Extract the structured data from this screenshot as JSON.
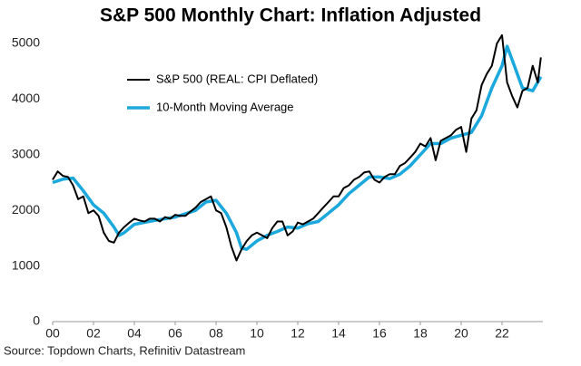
{
  "chart_data": {
    "type": "line",
    "title": "S&P 500 Monthly Chart: Inflation Adjusted",
    "source": "Source: Topdown Charts, Refinitiv Datastream",
    "legend": "upper left",
    "grid": false,
    "xlim": [
      0,
      24
    ],
    "ylim": [
      0,
      5000
    ],
    "yticks": [
      0,
      1000,
      2000,
      3000,
      4000,
      5000
    ],
    "xticks": [
      {
        "value": 0,
        "label": "00"
      },
      {
        "value": 2,
        "label": "02"
      },
      {
        "value": 4,
        "label": "04"
      },
      {
        "value": 6,
        "label": "06"
      },
      {
        "value": 8,
        "label": "08"
      },
      {
        "value": 10,
        "label": "10"
      },
      {
        "value": 12,
        "label": "12"
      },
      {
        "value": 14,
        "label": "14"
      },
      {
        "value": 16,
        "label": "16"
      },
      {
        "value": 18,
        "label": "18"
      },
      {
        "value": 20,
        "label": "20"
      },
      {
        "value": 22,
        "label": "22"
      }
    ],
    "series": [
      {
        "name": "S&P 500 (REAL: CPI Deflated)",
        "color": "#000000",
        "x": [
          0,
          0.25,
          0.5,
          0.75,
          1,
          1.25,
          1.5,
          1.75,
          2,
          2.25,
          2.5,
          2.75,
          3,
          3.25,
          3.5,
          3.75,
          4,
          4.25,
          4.5,
          4.75,
          5,
          5.25,
          5.5,
          5.75,
          6,
          6.25,
          6.5,
          6.75,
          7,
          7.25,
          7.5,
          7.75,
          8,
          8.25,
          8.5,
          8.75,
          9,
          9.25,
          9.5,
          9.75,
          10,
          10.25,
          10.5,
          10.75,
          11,
          11.25,
          11.5,
          11.75,
          12,
          12.25,
          12.5,
          12.75,
          13,
          13.25,
          13.5,
          13.75,
          14,
          14.25,
          14.5,
          14.75,
          15,
          15.25,
          15.5,
          15.75,
          16,
          16.25,
          16.5,
          16.75,
          17,
          17.25,
          17.5,
          17.75,
          18,
          18.25,
          18.5,
          18.75,
          19,
          19.25,
          19.5,
          19.75,
          20,
          20.25,
          20.5,
          20.75,
          21,
          21.25,
          21.5,
          21.75,
          22,
          22.25,
          22.5,
          22.75,
          23,
          23.25,
          23.5,
          23.75,
          23.9
        ],
        "values": [
          2550,
          2700,
          2620,
          2600,
          2450,
          2200,
          2250,
          1950,
          2000,
          1900,
          1600,
          1450,
          1420,
          1600,
          1700,
          1780,
          1850,
          1820,
          1800,
          1850,
          1850,
          1800,
          1880,
          1850,
          1920,
          1900,
          1900,
          1980,
          2050,
          2150,
          2200,
          2250,
          2000,
          1950,
          1700,
          1350,
          1100,
          1300,
          1450,
          1550,
          1600,
          1550,
          1500,
          1680,
          1800,
          1800,
          1550,
          1620,
          1780,
          1750,
          1800,
          1850,
          1950,
          2050,
          2150,
          2250,
          2250,
          2400,
          2450,
          2550,
          2600,
          2680,
          2700,
          2550,
          2500,
          2600,
          2650,
          2650,
          2800,
          2850,
          2950,
          3050,
          3200,
          3150,
          3300,
          2900,
          3250,
          3300,
          3350,
          3450,
          3500,
          3050,
          3650,
          3800,
          4250,
          4450,
          4600,
          5000,
          5150,
          4300,
          4050,
          3850,
          4150,
          4200,
          4600,
          4300,
          4750
        ]
      },
      {
        "name": "10-Month Moving Average",
        "color": "#1ba8dc",
        "x": [
          0,
          0.5,
          1,
          1.5,
          2,
          2.5,
          3,
          3.25,
          3.5,
          4,
          5,
          6,
          7,
          7.5,
          8,
          8.5,
          9,
          9.25,
          9.5,
          10,
          10.5,
          11,
          11.5,
          12,
          12.5,
          13,
          13.5,
          14,
          14.5,
          15,
          15.5,
          16,
          16.5,
          17,
          17.5,
          18,
          18.5,
          19,
          19.5,
          20,
          20.5,
          21,
          21.5,
          22,
          22.25,
          22.5,
          23,
          23.5,
          23.9
        ],
        "values": [
          2500,
          2560,
          2580,
          2350,
          2100,
          1950,
          1700,
          1550,
          1600,
          1750,
          1820,
          1880,
          2000,
          2150,
          2180,
          1950,
          1600,
          1320,
          1300,
          1450,
          1550,
          1620,
          1700,
          1680,
          1760,
          1800,
          1950,
          2100,
          2300,
          2450,
          2600,
          2600,
          2570,
          2650,
          2800,
          3000,
          3200,
          3200,
          3300,
          3350,
          3400,
          3700,
          4200,
          4600,
          4950,
          4700,
          4200,
          4150,
          4400
        ]
      }
    ]
  }
}
